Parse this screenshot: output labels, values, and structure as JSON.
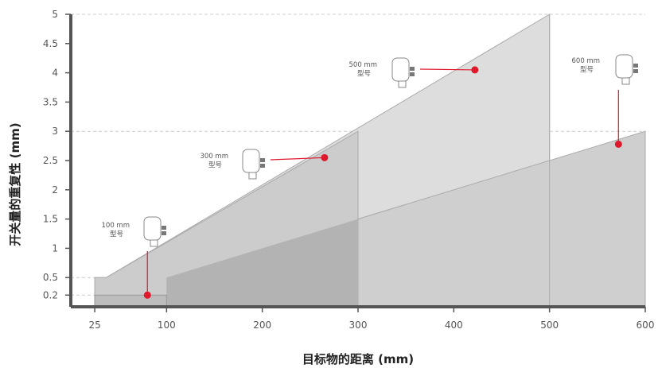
{
  "chart_data": {
    "type": "area",
    "xlabel": "目标物的距离 (mm)",
    "ylabel": "开关量的重复性 (mm)",
    "xlim": [
      0,
      600
    ],
    "ylim": [
      0,
      5
    ],
    "x_ticks": [
      25,
      100,
      200,
      300,
      400,
      500,
      600
    ],
    "y_ticks": [
      0.2,
      0.5,
      1,
      1.5,
      2,
      2.5,
      3,
      3.5,
      4,
      4.5,
      5
    ],
    "reference_lines_y": [
      0.2,
      0.5,
      3,
      5
    ],
    "series": [
      {
        "model": "100",
        "label_line1": "100 mm",
        "label_line2": "型号",
        "x": [
          25,
          100
        ],
        "repeatability": [
          0.2,
          0.2
        ],
        "fill": "#bdbdbd",
        "stroke": "#999999",
        "marker_at": [
          80,
          0.2
        ]
      },
      {
        "model": "300",
        "label_line1": "300 mm",
        "label_line2": "型号",
        "x": [
          25,
          300
        ],
        "repeatability": [
          0.5,
          3
        ],
        "fill": "#cccccc",
        "stroke": "#aaaaaa",
        "marker_at": [
          265,
          2.55
        ]
      },
      {
        "model": "500",
        "label_line1": "500 mm",
        "label_line2": "型号",
        "x": [
          25,
          500
        ],
        "repeatability": [
          0.5,
          5
        ],
        "fill": "#dddddd",
        "stroke": "#aaaaaa",
        "marker_at": [
          422,
          4.05
        ]
      },
      {
        "model": "600",
        "label_line1": "600 mm",
        "label_line2": "型号",
        "x": [
          100,
          600
        ],
        "repeatability": [
          0.5,
          3
        ],
        "fill": "#cfcfcf",
        "stroke": "#aaaaaa",
        "marker_at": [
          572,
          2.78
        ]
      }
    ],
    "colors": {
      "marker": "#e0182c",
      "axis": "#555555",
      "grid_dash": "#cccccc"
    }
  }
}
